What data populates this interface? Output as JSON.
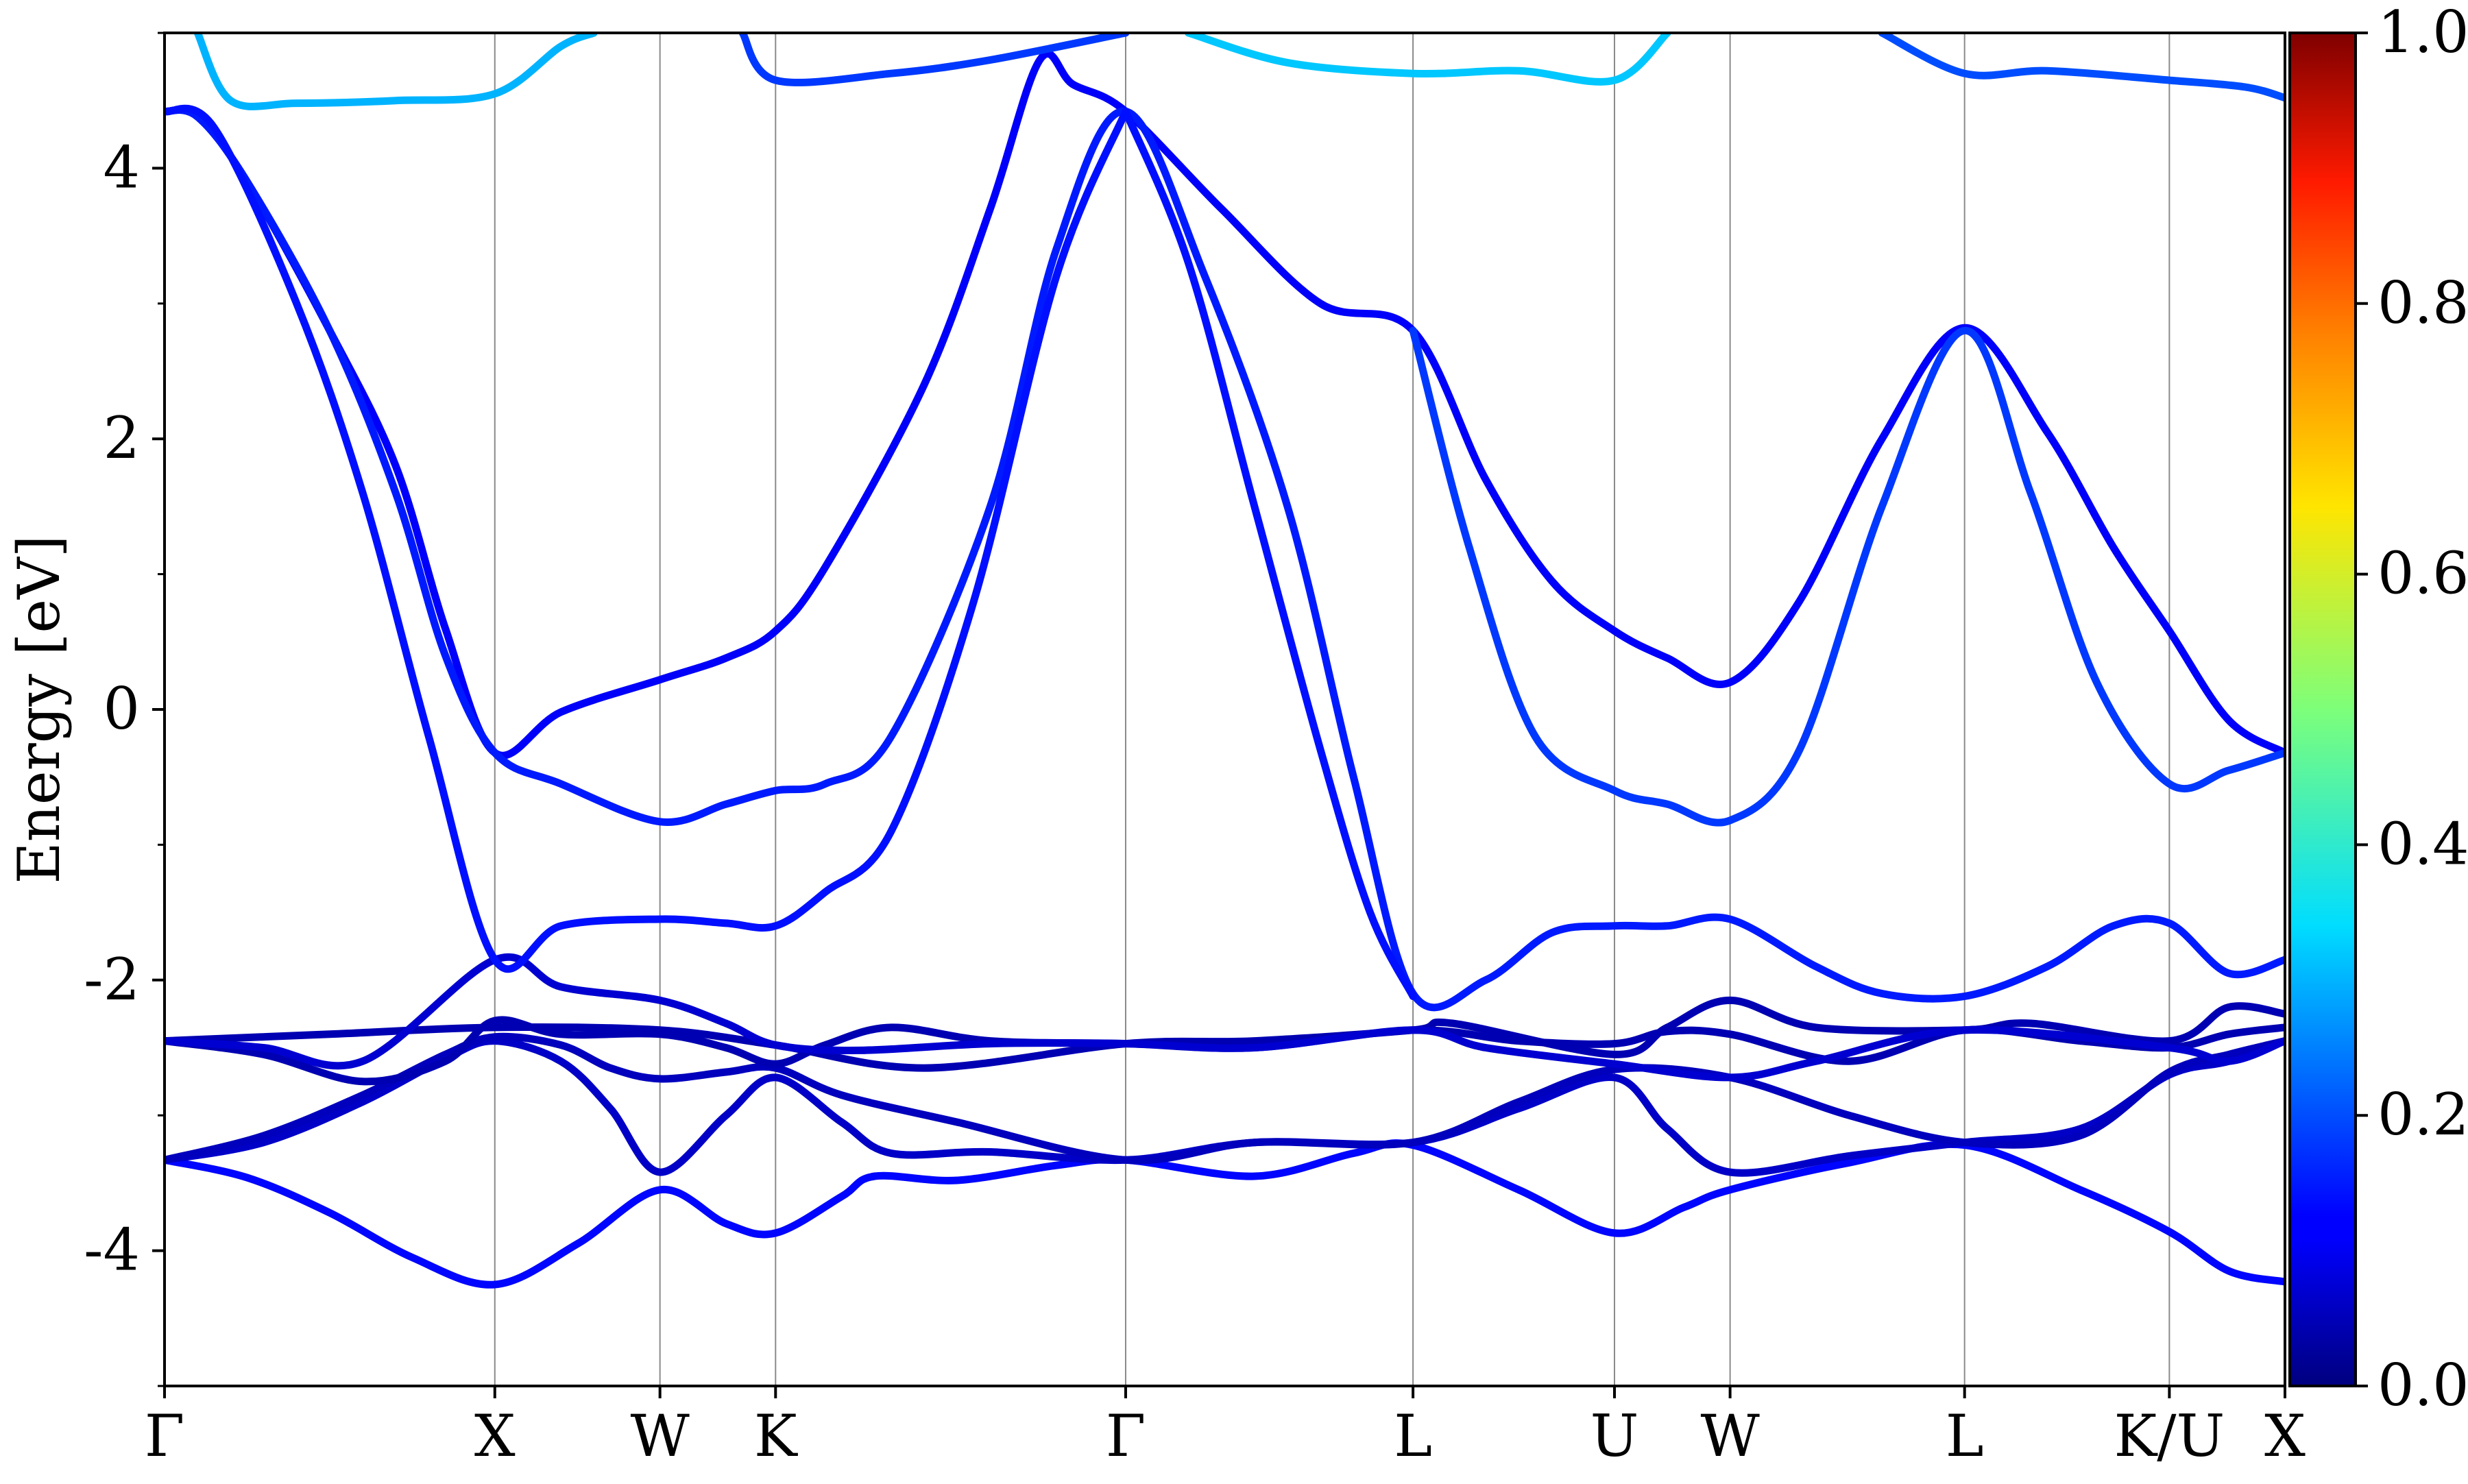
{
  "chart_data": {
    "type": "line",
    "title": "",
    "xlabel": "",
    "ylabel": "Energy [eV]",
    "ylim": [
      -5,
      5
    ],
    "y_ticks": [
      {
        "value": -4,
        "label": "-4"
      },
      {
        "value": -2,
        "label": "-2"
      },
      {
        "value": 0,
        "label": "0"
      },
      {
        "value": 2,
        "label": "2"
      },
      {
        "value": 4,
        "label": "4"
      }
    ],
    "y_minor_ticks": [
      -5,
      -3,
      -1,
      1,
      3,
      5
    ],
    "x_ticks": [
      {
        "value": 0.0,
        "label": "Γ"
      },
      {
        "value": 1.0,
        "label": "X"
      },
      {
        "value": 1.5,
        "label": "W"
      },
      {
        "value": 1.85,
        "label": "K"
      },
      {
        "value": 2.91,
        "label": "Γ"
      },
      {
        "value": 3.78,
        "label": "L"
      },
      {
        "value": 4.39,
        "label": "U"
      },
      {
        "value": 4.74,
        "label": "W"
      },
      {
        "value": 5.45,
        "label": "L"
      },
      {
        "value": 6.07,
        "label": "K/U"
      },
      {
        "value": 6.42,
        "label": "X"
      }
    ],
    "xlim": [
      0,
      6.42
    ],
    "grid": "vertical lines at high-symmetry points",
    "colormap": "jet",
    "colorbar": {
      "range": [
        0.0,
        1.0
      ],
      "ticks": [
        {
          "value": 0.0,
          "label": "0.0"
        },
        {
          "value": 0.2,
          "label": "0.2"
        },
        {
          "value": 0.4,
          "label": "0.4"
        },
        {
          "value": 0.6,
          "label": "0.6"
        },
        {
          "value": 0.8,
          "label": "0.8"
        },
        {
          "value": 1.0,
          "label": "1.0"
        }
      ]
    },
    "series": [
      {
        "weight": 0.13,
        "points": [
          [
            0,
            -3.33
          ],
          [
            0.25,
            -3.46
          ],
          [
            0.5,
            -3.72
          ],
          [
            0.75,
            -4.05
          ],
          [
            1.0,
            -4.25
          ],
          [
            1.25,
            -3.95
          ],
          [
            1.5,
            -3.55
          ],
          [
            1.7,
            -3.8
          ],
          [
            1.85,
            -3.87
          ],
          [
            2.05,
            -3.6
          ],
          [
            2.15,
            -3.45
          ],
          [
            2.4,
            -3.48
          ],
          [
            2.7,
            -3.37
          ],
          [
            2.91,
            -3.33
          ],
          [
            3.3,
            -3.45
          ],
          [
            3.6,
            -3.28
          ],
          [
            3.78,
            -3.22
          ],
          [
            4.1,
            -3.55
          ],
          [
            4.39,
            -3.87
          ],
          [
            4.6,
            -3.68
          ],
          [
            4.74,
            -3.55
          ],
          [
            5.1,
            -3.35
          ],
          [
            5.45,
            -3.22
          ],
          [
            5.8,
            -3.55
          ],
          [
            6.07,
            -3.86
          ],
          [
            6.25,
            -4.15
          ],
          [
            6.42,
            -4.23
          ]
        ]
      },
      {
        "weight": 0.07,
        "points": [
          [
            0,
            -3.33
          ],
          [
            0.3,
            -3.2
          ],
          [
            0.6,
            -2.9
          ],
          [
            0.85,
            -2.58
          ],
          [
            1.0,
            -2.45
          ],
          [
            1.2,
            -2.6
          ],
          [
            1.35,
            -2.95
          ],
          [
            1.5,
            -3.42
          ],
          [
            1.7,
            -3.0
          ],
          [
            1.85,
            -2.72
          ],
          [
            2.05,
            -3.05
          ],
          [
            2.2,
            -3.28
          ],
          [
            2.5,
            -3.27
          ],
          [
            2.91,
            -3.33
          ],
          [
            3.3,
            -3.2
          ],
          [
            3.78,
            -3.2
          ],
          [
            4.1,
            -2.95
          ],
          [
            4.39,
            -2.72
          ],
          [
            4.55,
            -3.1
          ],
          [
            4.74,
            -3.42
          ],
          [
            5.1,
            -3.3
          ],
          [
            5.45,
            -3.2
          ],
          [
            5.8,
            -3.1
          ],
          [
            6.07,
            -2.7
          ],
          [
            6.25,
            -2.6
          ],
          [
            6.42,
            -2.45
          ]
        ]
      },
      {
        "weight": 0.06,
        "points": [
          [
            0,
            -3.33
          ],
          [
            0.3,
            -3.15
          ],
          [
            0.6,
            -2.85
          ],
          [
            0.85,
            -2.55
          ],
          [
            1.0,
            -2.42
          ],
          [
            1.2,
            -2.48
          ],
          [
            1.35,
            -2.65
          ],
          [
            1.5,
            -2.73
          ],
          [
            1.7,
            -2.68
          ],
          [
            1.85,
            -2.65
          ],
          [
            2.05,
            -2.85
          ],
          [
            2.4,
            -3.05
          ],
          [
            2.91,
            -3.33
          ],
          [
            3.3,
            -3.2
          ],
          [
            3.78,
            -3.2
          ],
          [
            4.1,
            -2.9
          ],
          [
            4.39,
            -2.66
          ],
          [
            4.74,
            -2.72
          ],
          [
            5.1,
            -3.0
          ],
          [
            5.45,
            -3.2
          ],
          [
            5.8,
            -3.15
          ],
          [
            6.07,
            -2.68
          ],
          [
            6.25,
            -2.55
          ],
          [
            6.42,
            -2.45
          ]
        ]
      },
      {
        "weight": 0.05,
        "points": [
          [
            0,
            -2.45
          ],
          [
            0.3,
            -2.55
          ],
          [
            0.6,
            -2.75
          ],
          [
            0.85,
            -2.6
          ],
          [
            1.0,
            -2.3
          ],
          [
            1.2,
            -2.4
          ],
          [
            1.5,
            -2.4
          ],
          [
            1.7,
            -2.5
          ],
          [
            1.85,
            -2.62
          ],
          [
            2.0,
            -2.48
          ],
          [
            2.2,
            -2.35
          ],
          [
            2.5,
            -2.45
          ],
          [
            2.91,
            -2.47
          ],
          [
            3.3,
            -2.5
          ],
          [
            3.78,
            -2.37
          ],
          [
            4.1,
            -2.45
          ],
          [
            4.39,
            -2.47
          ],
          [
            4.55,
            -2.38
          ],
          [
            4.74,
            -2.4
          ],
          [
            5.1,
            -2.6
          ],
          [
            5.45,
            -2.37
          ],
          [
            5.8,
            -2.45
          ],
          [
            6.07,
            -2.5
          ],
          [
            6.25,
            -2.4
          ],
          [
            6.42,
            -2.35
          ]
        ]
      },
      {
        "weight": 0.05,
        "points": [
          [
            0,
            -2.45
          ],
          [
            0.5,
            -2.4
          ],
          [
            1.0,
            -2.35
          ],
          [
            1.5,
            -2.37
          ],
          [
            1.85,
            -2.48
          ],
          [
            2.3,
            -2.65
          ],
          [
            2.91,
            -2.47
          ],
          [
            3.3,
            -2.45
          ],
          [
            3.78,
            -2.37
          ],
          [
            3.9,
            -2.32
          ],
          [
            4.39,
            -2.55
          ],
          [
            4.55,
            -2.35
          ],
          [
            4.74,
            -2.15
          ],
          [
            5.0,
            -2.35
          ],
          [
            5.45,
            -2.37
          ],
          [
            5.65,
            -2.32
          ],
          [
            6.07,
            -2.45
          ],
          [
            6.25,
            -2.2
          ],
          [
            6.42,
            -2.25
          ]
        ]
      },
      {
        "weight": 0.08,
        "points": [
          [
            0,
            -2.45
          ],
          [
            0.3,
            -2.5
          ],
          [
            0.6,
            -2.6
          ],
          [
            1.0,
            -1.85
          ],
          [
            1.2,
            -2.05
          ],
          [
            1.5,
            -2.15
          ],
          [
            1.7,
            -2.32
          ],
          [
            1.85,
            -2.48
          ],
          [
            2.1,
            -2.52
          ],
          [
            2.5,
            -2.47
          ],
          [
            2.91,
            -2.47
          ],
          [
            3.3,
            -2.5
          ],
          [
            3.78,
            -2.37
          ],
          [
            4.0,
            -2.5
          ],
          [
            4.39,
            -2.62
          ],
          [
            4.74,
            -2.72
          ],
          [
            5.0,
            -2.6
          ],
          [
            5.45,
            -2.37
          ],
          [
            6.07,
            -2.5
          ],
          [
            6.25,
            -2.6
          ],
          [
            6.42,
            -2.45
          ]
        ]
      },
      {
        "weight": 0.12,
        "points": [
          [
            0,
            4.42
          ],
          [
            0.1,
            4.38
          ],
          [
            0.25,
            3.9
          ],
          [
            0.5,
            2.8
          ],
          [
            0.7,
            1.8
          ],
          [
            0.85,
            0.6
          ],
          [
            1.0,
            -0.32
          ],
          [
            1.2,
            -0.02
          ],
          [
            1.5,
            0.22
          ],
          [
            1.7,
            0.38
          ],
          [
            1.85,
            0.58
          ],
          [
            2.0,
            1.05
          ],
          [
            2.3,
            2.4
          ],
          [
            2.5,
            3.7
          ],
          [
            2.65,
            4.8
          ],
          [
            2.75,
            4.62
          ],
          [
            2.91,
            4.42
          ],
          [
            3.2,
            3.7
          ],
          [
            3.5,
            3.0
          ],
          [
            3.78,
            2.8
          ],
          [
            4.0,
            1.7
          ],
          [
            4.2,
            0.95
          ],
          [
            4.39,
            0.58
          ],
          [
            4.55,
            0.38
          ],
          [
            4.74,
            0.2
          ],
          [
            4.95,
            0.8
          ],
          [
            5.2,
            2.0
          ],
          [
            5.45,
            2.82
          ],
          [
            5.7,
            2.05
          ],
          [
            5.9,
            1.2
          ],
          [
            6.07,
            0.58
          ],
          [
            6.25,
            -0.08
          ],
          [
            6.42,
            -0.32
          ]
        ]
      },
      {
        "weight": 0.15,
        "points": [
          [
            0,
            4.42
          ],
          [
            0.1,
            4.38
          ],
          [
            0.25,
            3.9
          ],
          [
            0.5,
            2.8
          ],
          [
            0.7,
            1.6
          ],
          [
            0.85,
            0.4
          ],
          [
            1.0,
            -0.32
          ],
          [
            1.2,
            -0.55
          ],
          [
            1.5,
            -0.83
          ],
          [
            1.7,
            -0.7
          ],
          [
            1.85,
            -0.6
          ],
          [
            2.0,
            -0.55
          ],
          [
            2.2,
            -0.2
          ],
          [
            2.5,
            1.5
          ],
          [
            2.7,
            3.4
          ],
          [
            2.91,
            4.42
          ],
          [
            3.15,
            3.2
          ],
          [
            3.4,
            1.5
          ],
          [
            3.6,
            -0.5
          ],
          [
            3.78,
            -2.1
          ],
          [
            4.0,
            -2.0
          ],
          [
            4.2,
            -1.65
          ],
          [
            4.39,
            -1.6
          ],
          [
            4.55,
            -1.6
          ],
          [
            4.74,
            -1.55
          ],
          [
            5.0,
            -1.9
          ],
          [
            5.2,
            -2.1
          ],
          [
            5.45,
            -2.12
          ],
          [
            5.7,
            -1.9
          ],
          [
            5.9,
            -1.6
          ],
          [
            6.07,
            -1.58
          ],
          [
            6.25,
            -1.95
          ],
          [
            6.42,
            -1.85
          ]
        ]
      },
      {
        "weight": 0.14,
        "points": [
          [
            0,
            4.42
          ],
          [
            0.15,
            4.3
          ],
          [
            0.4,
            3.0
          ],
          [
            0.6,
            1.6
          ],
          [
            0.8,
            -0.2
          ],
          [
            1.0,
            -1.85
          ],
          [
            1.2,
            -1.6
          ],
          [
            1.5,
            -1.55
          ],
          [
            1.7,
            -1.58
          ],
          [
            1.85,
            -1.6
          ],
          [
            2.0,
            -1.35
          ],
          [
            2.2,
            -0.9
          ],
          [
            2.45,
            0.8
          ],
          [
            2.7,
            3.2
          ],
          [
            2.91,
            4.42
          ]
        ]
      },
      {
        "weight": 0.14,
        "points": [
          [
            2.91,
            4.42
          ],
          [
            3.1,
            3.3
          ],
          [
            3.3,
            1.5
          ],
          [
            3.5,
            -0.3
          ],
          [
            3.65,
            -1.5
          ],
          [
            3.78,
            -2.12
          ]
        ]
      },
      {
        "weight": 0.18,
        "points": [
          [
            3.78,
            2.8
          ],
          [
            3.95,
            1.2
          ],
          [
            4.15,
            -0.2
          ],
          [
            4.39,
            -0.6
          ],
          [
            4.55,
            -0.7
          ],
          [
            4.74,
            -0.82
          ],
          [
            4.95,
            -0.3
          ],
          [
            5.2,
            1.5
          ],
          [
            5.45,
            2.8
          ],
          [
            5.65,
            1.6
          ],
          [
            5.85,
            0.2
          ],
          [
            6.07,
            -0.55
          ],
          [
            6.25,
            -0.45
          ],
          [
            6.42,
            -0.32
          ]
        ]
      },
      {
        "weight": 0.3,
        "points": [
          [
            0.1,
            5.0
          ],
          [
            0.2,
            4.5
          ],
          [
            0.4,
            4.48
          ],
          [
            0.7,
            4.5
          ],
          [
            1.0,
            4.55
          ],
          [
            1.2,
            4.9
          ],
          [
            1.3,
            5.0
          ]
        ]
      },
      {
        "weight": 0.18,
        "points": [
          [
            1.75,
            5.0
          ],
          [
            1.85,
            4.65
          ],
          [
            2.2,
            4.7
          ],
          [
            2.5,
            4.8
          ],
          [
            2.91,
            5.0
          ]
        ]
      },
      {
        "weight": 0.32,
        "points": [
          [
            3.1,
            5.0
          ],
          [
            3.4,
            4.78
          ],
          [
            3.78,
            4.7
          ],
          [
            4.1,
            4.72
          ],
          [
            4.39,
            4.65
          ],
          [
            4.55,
            5.0
          ]
        ]
      },
      {
        "weight": 0.2,
        "points": [
          [
            5.2,
            5.0
          ],
          [
            5.45,
            4.7
          ],
          [
            5.7,
            4.72
          ],
          [
            6.07,
            4.65
          ],
          [
            6.3,
            4.6
          ],
          [
            6.42,
            4.52
          ]
        ]
      }
    ]
  }
}
